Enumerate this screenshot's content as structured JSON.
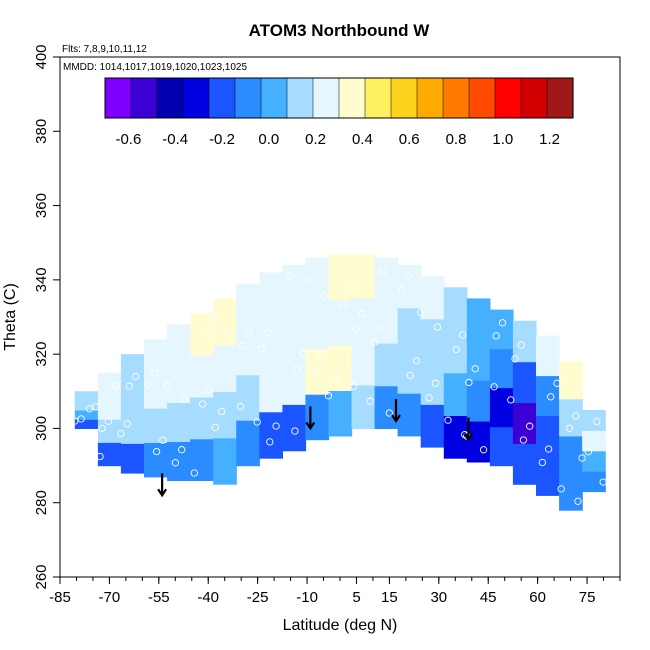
{
  "chart_data": {
    "type": "heatmap",
    "title": "ATOM3 Northbound W",
    "annotations": {
      "flights": "Flts: 7,8,9,10,11,12",
      "dates": "MMDD: 1014,1017,1019,1020,1023,1025"
    },
    "xlabel": "Latitude (deg N)",
    "ylabel": "Theta (C)",
    "xlim": [
      -85,
      85
    ],
    "ylim": [
      260,
      400
    ],
    "x_ticks": [
      -85,
      -70,
      -55,
      -40,
      -25,
      -10,
      5,
      15,
      30,
      45,
      60,
      75
    ],
    "x_tick_labels": [
      "-85",
      "-70",
      "-55",
      "-40",
      "-25",
      "-10",
      "5",
      "15",
      "30",
      "45",
      "60",
      "75"
    ],
    "y_ticks": [
      260,
      280,
      300,
      320,
      340,
      360,
      380,
      400
    ],
    "y_tick_labels": [
      "260",
      "280",
      "300",
      "320",
      "340",
      "360",
      "380",
      "400"
    ],
    "colorbar": {
      "min": -0.7,
      "max": 1.3,
      "ticks": [
        -0.6,
        -0.4,
        -0.2,
        0.0,
        0.2,
        0.4,
        0.6,
        0.8,
        1.0,
        1.2
      ],
      "tick_labels": [
        "-0.6",
        "-0.4",
        "-0.2",
        "0.0",
        "0.2",
        "0.4",
        "0.6",
        "0.8",
        "1.0",
        "1.2"
      ],
      "colors": [
        "#7d00ff",
        "#3b00d6",
        "#0000b0",
        "#0000e0",
        "#1a55ff",
        "#2a8cff",
        "#44b0ff",
        "#a6dcff",
        "#e6f6ff",
        "#fffcd0",
        "#fff060",
        "#ffd21e",
        "#ffaa00",
        "#ff7a00",
        "#ff4a00",
        "#ff0000",
        "#d20000",
        "#a01818"
      ]
    },
    "tropopause_arrows": [
      {
        "lat": -54,
        "theta": 282
      },
      {
        "lat": -9,
        "theta": 300
      },
      {
        "lat": 17,
        "theta": 302
      },
      {
        "lat": 39,
        "theta": 297
      }
    ],
    "field": {
      "latitude": [
        -77,
        -70,
        -63,
        -56,
        -49,
        -42,
        -35,
        -28,
        -21,
        -14,
        -7,
        0,
        7,
        14,
        21,
        28,
        35,
        42,
        49,
        56,
        63,
        70,
        77
      ],
      "theta_lower": [
        300,
        290,
        288,
        287,
        286,
        286,
        285,
        290,
        292,
        294,
        297,
        298,
        300,
        300,
        298,
        295,
        292,
        291,
        290,
        285,
        282,
        278,
        283
      ],
      "theta_upper": [
        310,
        315,
        320,
        324,
        328,
        331,
        335,
        339,
        342,
        344,
        346,
        347,
        347,
        346,
        344,
        341,
        338,
        335,
        332,
        329,
        325,
        318,
        305
      ],
      "w_values": [
        [
          -0.15,
          -0.2,
          -0.25,
          -0.1,
          -0.05,
          -0.1,
          0.0,
          -0.05,
          -0.15,
          -0.2,
          -0.05,
          0.05,
          0.15,
          -0.1,
          -0.1,
          -0.15,
          -0.3,
          -0.35,
          -0.25,
          -0.15,
          -0.2,
          -0.1,
          -0.05
        ],
        [
          0.05,
          0.1,
          0.1,
          0.15,
          0.15,
          0.15,
          0.1,
          0.15,
          0.2,
          0.25,
          0.35,
          0.3,
          0.2,
          0.15,
          0.1,
          0.1,
          0.0,
          -0.1,
          -0.3,
          -0.5,
          -0.25,
          -0.1,
          0.05
        ],
        [
          0.15,
          0.2,
          0.15,
          0.2,
          0.2,
          0.25,
          0.25,
          0.2,
          0.2,
          0.25,
          0.2,
          0.25,
          0.25,
          0.2,
          0.15,
          0.15,
          0.1,
          0.05,
          -0.1,
          -0.2,
          -0.05,
          0.1,
          0.2
        ],
        [
          0.15,
          0.2,
          0.15,
          0.2,
          0.25,
          0.3,
          0.3,
          0.25,
          0.25,
          0.2,
          0.25,
          0.3,
          0.3,
          0.25,
          0.2,
          0.2,
          0.15,
          0.05,
          0.0,
          0.1,
          0.2,
          0.3,
          0.15
        ]
      ]
    }
  }
}
